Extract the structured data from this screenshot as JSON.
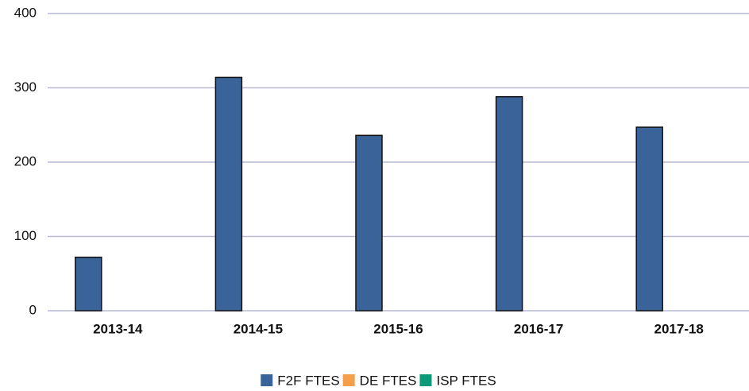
{
  "chart_data": {
    "type": "bar",
    "categories": [
      "2013-14",
      "2014-15",
      "2015-16",
      "2016-17",
      "2017-18"
    ],
    "series": [
      {
        "name": "F2F FTES",
        "color": "#3a6399",
        "values": [
          72,
          314,
          236,
          288,
          247
        ]
      },
      {
        "name": "DE FTES",
        "color": "#f4a04a",
        "values": [
          0,
          0,
          0,
          0,
          0
        ]
      },
      {
        "name": "ISP FTES",
        "color": "#0c9a7a",
        "values": [
          0,
          0,
          0,
          0,
          0
        ]
      }
    ],
    "ylim": [
      0,
      400
    ],
    "yticks": [
      0,
      100,
      200,
      300,
      400
    ],
    "grid": true,
    "legend": "bottom"
  }
}
